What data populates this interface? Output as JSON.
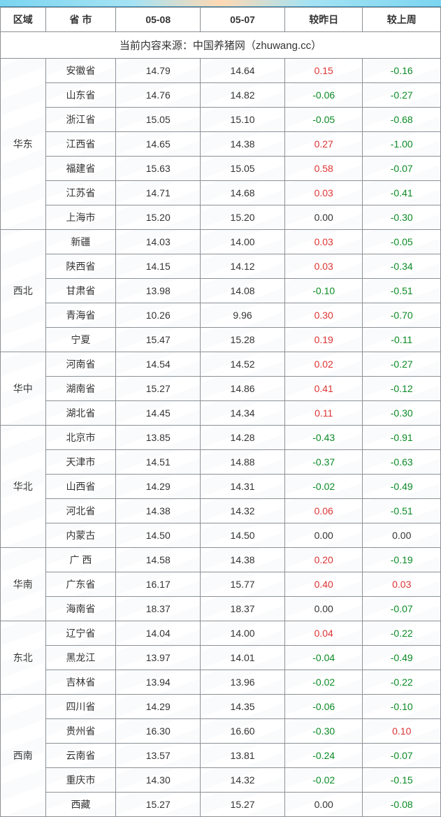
{
  "headers": {
    "region": "区域",
    "province": "省 市",
    "col_a": "05-08",
    "col_b": "05-07",
    "delta_day": "较昨日",
    "delta_week": "较上周"
  },
  "source_line": "当前内容来源：中国养猪网（zhuwang.cc）",
  "regions": [
    {
      "name": "华东",
      "rows": [
        {
          "prov": "安徽省",
          "a": "14.79",
          "b": "14.64",
          "dd": "0.15",
          "dw": "-0.16"
        },
        {
          "prov": "山东省",
          "a": "14.76",
          "b": "14.82",
          "dd": "-0.06",
          "dw": "-0.27"
        },
        {
          "prov": "浙江省",
          "a": "15.05",
          "b": "15.10",
          "dd": "-0.05",
          "dw": "-0.68"
        },
        {
          "prov": "江西省",
          "a": "14.65",
          "b": "14.38",
          "dd": "0.27",
          "dw": "-1.00"
        },
        {
          "prov": "福建省",
          "a": "15.63",
          "b": "15.05",
          "dd": "0.58",
          "dw": "-0.07"
        },
        {
          "prov": "江苏省",
          "a": "14.71",
          "b": "14.68",
          "dd": "0.03",
          "dw": "-0.41"
        },
        {
          "prov": "上海市",
          "a": "15.20",
          "b": "15.20",
          "dd": "0.00",
          "dw": "-0.30"
        }
      ]
    },
    {
      "name": "西北",
      "rows": [
        {
          "prov": "新疆",
          "a": "14.03",
          "b": "14.00",
          "dd": "0.03",
          "dw": "-0.05"
        },
        {
          "prov": "陕西省",
          "a": "14.15",
          "b": "14.12",
          "dd": "0.03",
          "dw": "-0.34"
        },
        {
          "prov": "甘肃省",
          "a": "13.98",
          "b": "14.08",
          "dd": "-0.10",
          "dw": "-0.51"
        },
        {
          "prov": "青海省",
          "a": "10.26",
          "b": "9.96",
          "dd": "0.30",
          "dw": "-0.70"
        },
        {
          "prov": "宁夏",
          "a": "15.47",
          "b": "15.28",
          "dd": "0.19",
          "dw": "-0.11"
        }
      ]
    },
    {
      "name": "华中",
      "rows": [
        {
          "prov": "河南省",
          "a": "14.54",
          "b": "14.52",
          "dd": "0.02",
          "dw": "-0.27"
        },
        {
          "prov": "湖南省",
          "a": "15.27",
          "b": "14.86",
          "dd": "0.41",
          "dw": "-0.12"
        },
        {
          "prov": "湖北省",
          "a": "14.45",
          "b": "14.34",
          "dd": "0.11",
          "dw": "-0.30"
        }
      ]
    },
    {
      "name": "华北",
      "rows": [
        {
          "prov": "北京市",
          "a": "13.85",
          "b": "14.28",
          "dd": "-0.43",
          "dw": "-0.91"
        },
        {
          "prov": "天津市",
          "a": "14.51",
          "b": "14.88",
          "dd": "-0.37",
          "dw": "-0.63"
        },
        {
          "prov": "山西省",
          "a": "14.29",
          "b": "14.31",
          "dd": "-0.02",
          "dw": "-0.49"
        },
        {
          "prov": "河北省",
          "a": "14.38",
          "b": "14.32",
          "dd": "0.06",
          "dw": "-0.51"
        },
        {
          "prov": "内蒙古",
          "a": "14.50",
          "b": "14.50",
          "dd": "0.00",
          "dw": "0.00"
        }
      ]
    },
    {
      "name": "华南",
      "rows": [
        {
          "prov": "广 西",
          "a": "14.58",
          "b": "14.38",
          "dd": "0.20",
          "dw": "-0.19"
        },
        {
          "prov": "广东省",
          "a": "16.17",
          "b": "15.77",
          "dd": "0.40",
          "dw": "0.03"
        },
        {
          "prov": "海南省",
          "a": "18.37",
          "b": "18.37",
          "dd": "0.00",
          "dw": "-0.07"
        }
      ]
    },
    {
      "name": "东北",
      "rows": [
        {
          "prov": "辽宁省",
          "a": "14.04",
          "b": "14.00",
          "dd": "0.04",
          "dw": "-0.22"
        },
        {
          "prov": "黑龙江",
          "a": "13.97",
          "b": "14.01",
          "dd": "-0.04",
          "dw": "-0.49"
        },
        {
          "prov": "吉林省",
          "a": "13.94",
          "b": "13.96",
          "dd": "-0.02",
          "dw": "-0.22"
        }
      ]
    },
    {
      "name": "西南",
      "rows": [
        {
          "prov": "四川省",
          "a": "14.29",
          "b": "14.35",
          "dd": "-0.06",
          "dw": "-0.10"
        },
        {
          "prov": "贵州省",
          "a": "16.30",
          "b": "16.60",
          "dd": "-0.30",
          "dw": "0.10"
        },
        {
          "prov": "云南省",
          "a": "13.57",
          "b": "13.81",
          "dd": "-0.24",
          "dw": "-0.07"
        },
        {
          "prov": "重庆市",
          "a": "14.30",
          "b": "14.32",
          "dd": "-0.02",
          "dw": "-0.15"
        },
        {
          "prov": "西藏",
          "a": "15.27",
          "b": "15.27",
          "dd": "0.00",
          "dw": "-0.08"
        }
      ]
    }
  ],
  "colors": {
    "pos": "#d33333",
    "neg": "#0a8a25",
    "zero": "#333333",
    "border": "#8a8f94"
  }
}
